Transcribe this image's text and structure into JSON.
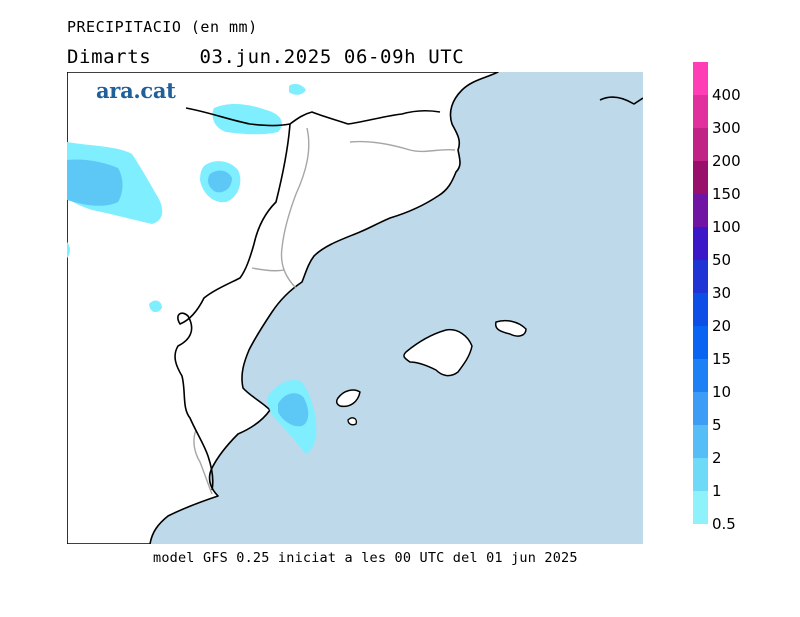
{
  "map": {
    "title": "PRECIPITACIO (en mm)",
    "day": "Dimarts",
    "date": "03.jun.2025",
    "hours": "06-09h UTC",
    "brand": "ara.cat",
    "footer": "model GFS 0.25 iniciat a les 00 UTC del 01 jun 2025",
    "colors": {
      "sea": "#bdd9ea",
      "land": "#ffffff",
      "coast": "#000000",
      "borders": "#a6a6a6",
      "rain_light": "#7fefff",
      "rain_medium": "#5dc8f6"
    }
  },
  "legend": {
    "levels": [
      {
        "label": "400",
        "color": "#ff3db4"
      },
      {
        "label": "300",
        "color": "#e22f9e"
      },
      {
        "label": "200",
        "color": "#c12285"
      },
      {
        "label": "150",
        "color": "#98106b"
      },
      {
        "label": "100",
        "color": "#6f14a3"
      },
      {
        "label": "50",
        "color": "#3b17c8"
      },
      {
        "label": "30",
        "color": "#1f34d4"
      },
      {
        "label": "20",
        "color": "#0c4ee6"
      },
      {
        "label": "15",
        "color": "#0a64f2"
      },
      {
        "label": "10",
        "color": "#1d80f5"
      },
      {
        "label": "5",
        "color": "#3c9cf6"
      },
      {
        "label": "2",
        "color": "#57bdf6"
      },
      {
        "label": "1",
        "color": "#6fdaf7"
      },
      {
        "label": "0.5",
        "color": "#8ff1f9"
      }
    ]
  }
}
